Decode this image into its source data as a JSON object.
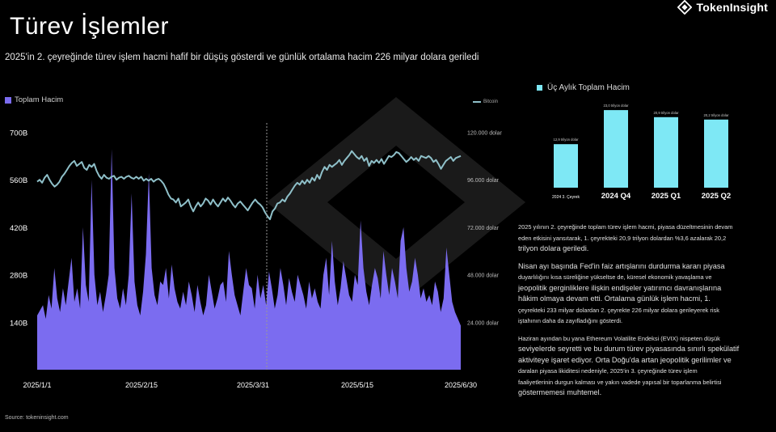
{
  "header": {
    "title": "Türev İşlemler",
    "subtitle": "2025'in 2. çeyreğinde türev işlem hacmi hafif bir düşüş gösterdi ve günlük ortalama hacim 226 milyar dolara geriledi",
    "brand": "TokenInsight"
  },
  "legend": {
    "volume": "Toplam Hacim",
    "bitcoin": "Bitcoin",
    "quarterly": "Üç Aylık Toplam Hacim"
  },
  "source": "Source: tokeninsight.com",
  "colors": {
    "volume": "#7b6cf0",
    "bitcoin": "#8fc0c9",
    "bars": "#7ee8f5",
    "background": "#000000"
  },
  "chart_data": [
    {
      "type": "area",
      "series": [
        {
          "name": "Toplam Hacim",
          "axis": "left",
          "values": [
            160,
            175,
            190,
            150,
            220,
            180,
            300,
            210,
            170,
            240,
            190,
            260,
            330,
            200,
            240,
            180,
            420,
            250,
            200,
            560,
            280,
            190,
            230,
            170,
            220,
            280,
            650,
            300,
            210,
            180,
            240,
            190,
            280,
            520,
            260,
            190,
            160,
            230,
            340,
            580,
            300,
            220,
            190,
            260,
            250,
            300,
            210,
            310,
            240,
            200,
            180,
            230,
            190,
            260,
            220,
            170,
            250,
            200,
            160,
            190,
            280,
            230,
            180,
            210,
            250,
            260,
            200,
            350,
            280,
            220,
            190,
            160,
            230,
            300,
            250,
            240,
            180,
            280,
            210,
            250,
            190,
            290,
            240,
            180,
            220,
            300,
            250,
            190,
            270,
            230,
            200,
            280,
            250,
            220,
            180,
            260,
            210,
            240,
            200,
            180,
            280,
            330,
            220,
            380,
            260,
            190,
            240,
            320,
            270,
            220,
            200,
            280,
            250,
            440,
            300,
            230,
            190,
            250,
            300,
            270,
            210,
            350,
            280,
            220,
            300,
            260,
            210,
            380,
            420,
            300,
            230,
            260,
            330,
            280,
            210,
            240,
            200,
            220,
            190,
            260,
            230,
            170,
            210,
            360,
            280,
            200,
            170,
            150,
            130
          ],
          "x_range": [
            "2025/1/1",
            "2025/6/30"
          ]
        },
        {
          "name": "Bitcoin",
          "axis": "right",
          "values": [
            95000,
            96000,
            94500,
            97000,
            98500,
            96000,
            94000,
            92500,
            93500,
            95000,
            97500,
            99000,
            101000,
            103000,
            104500,
            105500,
            103000,
            104000,
            105000,
            102000,
            101000,
            103500,
            102500,
            104000,
            100500,
            98000,
            96500,
            98500,
            97000,
            96500,
            97500,
            98000,
            96000,
            97000,
            97500,
            96500,
            97500,
            98000,
            97000,
            96500,
            97500,
            96500,
            97500,
            95500,
            96500,
            95500,
            96500,
            95000,
            96000,
            96500,
            95500,
            94000,
            91500,
            88500,
            86500,
            86000,
            84500,
            86500,
            82500,
            83500,
            84500,
            86000,
            82500,
            80000,
            82500,
            84500,
            82500,
            84000,
            86500,
            85500,
            83500,
            86000,
            84000,
            82500,
            84500,
            86500,
            85000,
            87000,
            85500,
            83500,
            82000,
            84000,
            85000,
            83500,
            82000,
            80500,
            82500,
            84500,
            86000,
            84500,
            83500,
            82000,
            79500,
            77500,
            76000,
            80000,
            81500,
            84000,
            84500,
            86000,
            85000,
            87500,
            89000,
            91000,
            93000,
            94500,
            93500,
            95500,
            94000,
            96000,
            94500,
            97000,
            95500,
            98500,
            96500,
            100000,
            102500,
            101000,
            103500,
            102500,
            103500,
            104500,
            106000,
            103500,
            105500,
            107000,
            108500,
            110500,
            109000,
            107500,
            106500,
            108000,
            105500,
            107000,
            103000,
            105500,
            104500,
            106000,
            104500,
            106500,
            104000,
            106000,
            108000,
            107500,
            108500,
            110000,
            109500,
            108000,
            106500,
            105000,
            106000,
            107500,
            106000,
            107000,
            105500,
            108000,
            107500,
            107000,
            108000,
            107000,
            105000,
            106000,
            104000,
            101500,
            103500,
            105500,
            106500,
            107500,
            105500,
            107000,
            107500,
            108000
          ]
        }
      ],
      "x_ticks": [
        "2025/1/1",
        "2025/2/15",
        "2025/3/31",
        "2025/5/15",
        "2025/6/30"
      ],
      "y_left_ticks": [
        "140B",
        "280B",
        "420B",
        "560B",
        "700B"
      ],
      "y_left_range": [
        0,
        756
      ],
      "y_right_ticks": [
        "24.000 dolar",
        "48.000 dolar",
        "72.000 dolar",
        "96.000 dolar",
        "120.000 dolar"
      ],
      "y_right_range": [
        0,
        129600
      ],
      "marker_date": "2025/3/31",
      "grid": false,
      "legend_placement": "top"
    },
    {
      "type": "bar",
      "categories": [
        "2024 3. Çeyrek",
        "2024 Q4",
        "2025 Q1",
        "2025 Q2"
      ],
      "values": [
        12.9,
        23.0,
        20.9,
        20.2
      ],
      "value_labels": [
        "12,9 trilyon dolar",
        "23,0 trilyon dolar",
        "20,9 trilyon dolar",
        "20,2 trilyon dolar"
      ],
      "ylim": [
        0,
        23.5
      ]
    }
  ],
  "paragraphs": [
    {
      "lines": [
        {
          "text": "2025 yılının 2. çeyreğinde toplam türev işlem hacmi, piyasa düzeltmesinin devam",
          "big": false
        },
        {
          "text": "eden etkisini yansıtarak, 1. çeyrekteki 20,9 trilyon dolardan %3,6 azalarak 20,2",
          "big": false
        },
        {
          "text": " trilyon dolara geriledi.",
          "big": true
        }
      ]
    },
    {
      "lines": [
        {
          "text": "Nisan ayı başında Fed'in faiz artışlarını durdurma kararı piyasa",
          "big": true
        },
        {
          "text": " duyarlılığını kısa süreliğine yükseltse de, küresel ekonomik yavaşlama ve",
          "big": false
        },
        {
          "text": "jeopolitik gerginliklere ilişkin endişeler yatırımcı davranışlarına",
          "big": true
        },
        {
          "text": "hâkim olmaya devam etti. Ortalama günlük işlem hacmi, 1.",
          "big": true
        },
        {
          "text": "çeyrekteki 233 milyar dolardan 2. çeyrekte 226 milyar dolara gerileyerek risk",
          "big": false
        },
        {
          "text": "iştahının daha da zayıfladığını gösterdi.",
          "big": false
        }
      ]
    },
    {
      "lines": [
        {
          "text": " Haziran ayından bu yana Ethereum Volatilite Endeksi (EVIX) nispeten düşük",
          "big": false
        },
        {
          "text": "seviyelerde seyretti ve bu durum türev piyasasında sınırlı spekülatif",
          "big": true
        },
        {
          "text": "aktiviteye işaret ediyor. Orta Doğu'da artan jeopolitik gerilimler ve",
          "big": true
        },
        {
          "text": "daralan piyasa likiditesi nedeniyle, 2025'in 3. çeyreğinde türev işlem",
          "big": false
        },
        {
          "text": "faaliyetlerinin durgun kalması ve yakın vadede yapısal bir toparlanma belirtisi",
          "big": false
        },
        {
          "text": " göstermemesi muhtemel.",
          "big": true
        }
      ]
    }
  ]
}
